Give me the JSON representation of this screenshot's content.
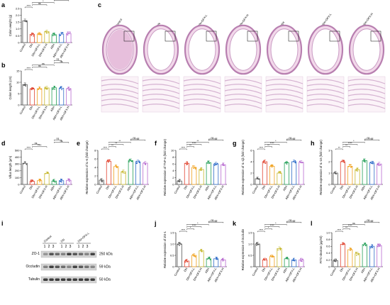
{
  "panel_letters": {
    "a": "a",
    "b": "b",
    "c": "c",
    "d": "d",
    "e": "e",
    "f": "f",
    "g": "g",
    "h": "h",
    "i": "i",
    "j": "j",
    "k": "k",
    "l": "l"
  },
  "groups": [
    "Control",
    "DN",
    "DN+OFX-L",
    "DN+OFX-H",
    "ABX",
    "ABX+OFX-L",
    "ABX+OFX-H"
  ],
  "colors": {
    "Control": "#555555",
    "DN": "#e0432f",
    "DN+OFX-L": "#f0a21f",
    "DN+OFX-H": "#c6b82f",
    "ABX": "#27a05a",
    "ABX+OFX-L": "#2f6cc9",
    "ABX+OFX-H": "#b86bd0"
  },
  "histology": {
    "labels": [
      "Control",
      "DN",
      "DN+OFX-L",
      "DN+OFX-H",
      "ABX",
      "ABX+OFX-L",
      "ABX+OFX-H"
    ]
  },
  "western_blot": {
    "top_groups": [
      "Control",
      "DN",
      "DN+OFX-L"
    ],
    "lanes": [
      "1",
      "2",
      "3"
    ],
    "proteins": [
      "ZO-1",
      "Occludin",
      "Tubulin"
    ],
    "sizes": [
      "250 kDa",
      "59 kDa",
      "50 kDa"
    ]
  },
  "chart_data": [
    {
      "id": "a",
      "type": "bar",
      "ylabel": "Colon weight (g)",
      "ylim": [
        0,
        2.5
      ],
      "yticks": [
        "0",
        "0.5",
        "1.0",
        "1.5",
        "2.0",
        "2.5"
      ],
      "categories": [
        "Control",
        "DN",
        "DN+OFX-L",
        "DN+OFX-H",
        "ABX",
        "ABX+OFX-L",
        "ABX+OFX-H"
      ],
      "values": [
        1.6,
        0.6,
        0.62,
        0.8,
        0.58,
        0.62,
        0.66
      ],
      "sig": [
        {
          "a": 0,
          "b": 1,
          "t": "****"
        },
        {
          "a": 1,
          "b": 3,
          "t": "ns"
        },
        {
          "a": 1,
          "b": 4,
          "t": "*"
        },
        {
          "a": 4,
          "b": 6,
          "t": "ns"
        },
        {
          "a": 4,
          "b": 5,
          "t": "ns"
        }
      ]
    },
    {
      "id": "b",
      "type": "bar",
      "ylabel": "Colon length (cm)",
      "ylim": [
        0,
        15
      ],
      "yticks": [
        "0",
        "5",
        "10",
        "15"
      ],
      "categories": [
        "Control",
        "DN",
        "DN+OFX-L",
        "DN+OFX-H",
        "ABX",
        "ABX+OFX-L",
        "ABX+OFX-H"
      ],
      "values": [
        9,
        7,
        7.2,
        7.5,
        7.6,
        7.4,
        7.2
      ],
      "sig": [
        {
          "a": 0,
          "b": 1,
          "t": "****"
        },
        {
          "a": 1,
          "b": 3,
          "t": "ns"
        },
        {
          "a": 1,
          "b": 4,
          "t": "ns"
        },
        {
          "a": 4,
          "b": 6,
          "t": "ns"
        },
        {
          "a": 4,
          "b": 5,
          "t": "ns"
        }
      ]
    },
    {
      "id": "d",
      "type": "bar",
      "ylabel": "Villus length (μm)",
      "ylim": [
        0,
        500
      ],
      "yticks": [
        "0",
        "100",
        "200",
        "300",
        "400",
        "500"
      ],
      "categories": [
        "Control",
        "DN",
        "DN+OFX-L",
        "DN+OFX-H",
        "ABX",
        "ABX+OFX-L",
        "ABX+OFX-H"
      ],
      "values": [
        310,
        45,
        55,
        160,
        50,
        55,
        60
      ],
      "sig": [
        {
          "a": 0,
          "b": 1,
          "t": "****"
        },
        {
          "a": 1,
          "b": 3,
          "t": "****"
        },
        {
          "a": 1,
          "b": 2,
          "t": "ns"
        },
        {
          "a": 4,
          "b": 6,
          "t": "ns"
        },
        {
          "a": 4,
          "b": 5,
          "t": "ns"
        }
      ]
    },
    {
      "id": "e",
      "type": "bar",
      "ylabel": "Relative expression of IL-6 (fold change)",
      "ylim": [
        0,
        8
      ],
      "yticks": [
        "0",
        "2",
        "4",
        "6",
        "8"
      ],
      "categories": [
        "Control",
        "DN",
        "DN+OFX-L",
        "DN+OFX-H",
        "ABX",
        "ABX+OFX-L",
        "ABX+OFX-H"
      ],
      "values": [
        1,
        5.4,
        4.2,
        3.0,
        5.6,
        5.3,
        5.0
      ],
      "sig": [
        {
          "a": 0,
          "b": 1,
          "t": "****"
        },
        {
          "a": 1,
          "b": 2,
          "t": "**"
        },
        {
          "a": 1,
          "b": 3,
          "t": "**"
        },
        {
          "a": 1,
          "b": 4,
          "t": "**"
        },
        {
          "a": 4,
          "b": 6,
          "t": "ns"
        },
        {
          "a": 4,
          "b": 5,
          "t": "ns"
        }
      ]
    },
    {
      "id": "f",
      "type": "bar",
      "ylabel": "Relative expression of TNF-α (fold change)",
      "ylim": [
        0,
        10
      ],
      "yticks": [
        "0",
        "2",
        "4",
        "6",
        "8",
        "10"
      ],
      "categories": [
        "Control",
        "DN",
        "DN+OFX-L",
        "DN+OFX-H",
        "ABX",
        "ABX+OFX-L",
        "ABX+OFX-H"
      ],
      "values": [
        1,
        6.2,
        5.0,
        4.4,
        6.4,
        6.0,
        5.8
      ],
      "sig": [
        {
          "a": 0,
          "b": 1,
          "t": "****"
        },
        {
          "a": 1,
          "b": 2,
          "t": "**"
        },
        {
          "a": 1,
          "b": 3,
          "t": "****"
        },
        {
          "a": 1,
          "b": 4,
          "t": "**"
        },
        {
          "a": 4,
          "b": 6,
          "t": "ns"
        },
        {
          "a": 4,
          "b": 5,
          "t": "ns"
        }
      ]
    },
    {
      "id": "g",
      "type": "bar",
      "ylabel": "Relative expression of IL-1β (fold change)",
      "ylim": [
        0,
        6
      ],
      "yticks": [
        "0",
        "2",
        "4",
        "6"
      ],
      "categories": [
        "Control",
        "DN",
        "DN+OFX-L",
        "DN+OFX-H",
        "ABX",
        "ABX+OFX-L",
        "ABX+OFX-H"
      ],
      "values": [
        1,
        4.0,
        3.2,
        2.0,
        3.8,
        4.0,
        3.9
      ],
      "sig": [
        {
          "a": 0,
          "b": 1,
          "t": "****"
        },
        {
          "a": 1,
          "b": 2,
          "t": "**"
        },
        {
          "a": 1,
          "b": 3,
          "t": "****"
        },
        {
          "a": 1,
          "b": 4,
          "t": "*"
        },
        {
          "a": 4,
          "b": 6,
          "t": "ns"
        },
        {
          "a": 4,
          "b": 5,
          "t": "ns"
        }
      ]
    },
    {
      "id": "h",
      "type": "bar",
      "ylabel": "Relative expression of IL-10 (fold change)",
      "ylim": [
        0,
        3
      ],
      "yticks": [
        "0",
        "1",
        "2",
        "3"
      ],
      "categories": [
        "Control",
        "DN",
        "DN+OFX-L",
        "DN+OFX-H",
        "ABX",
        "ABX+OFX-L",
        "ABX+OFX-H"
      ],
      "values": [
        1,
        2.0,
        1.6,
        1.3,
        2.1,
        1.9,
        1.8
      ],
      "sig": [
        {
          "a": 0,
          "b": 1,
          "t": "**"
        },
        {
          "a": 1,
          "b": 2,
          "t": "**"
        },
        {
          "a": 1,
          "b": 3,
          "t": "****"
        },
        {
          "a": 1,
          "b": 4,
          "t": "*"
        },
        {
          "a": 4,
          "b": 6,
          "t": "ns"
        },
        {
          "a": 4,
          "b": 5,
          "t": "ns"
        }
      ]
    },
    {
      "id": "j",
      "type": "bar",
      "ylabel": "Relative expression of ZO-1",
      "ylim": [
        0,
        1.5
      ],
      "yticks": [
        "0",
        "0.5",
        "1.0",
        "1.5"
      ],
      "categories": [
        "Control",
        "DN",
        "DN+OFX-L",
        "DN+OFX-H",
        "ABX",
        "ABX+OFX-L",
        "ABX+OFX-H"
      ],
      "values": [
        1.0,
        0.25,
        0.5,
        0.7,
        0.35,
        0.35,
        0.3
      ],
      "sig": [
        {
          "a": 0,
          "b": 1,
          "t": "****"
        },
        {
          "a": 1,
          "b": 2,
          "t": "*"
        },
        {
          "a": 1,
          "b": 3,
          "t": "****"
        },
        {
          "a": 1,
          "b": 4,
          "t": "*"
        },
        {
          "a": 4,
          "b": 6,
          "t": "ns"
        },
        {
          "a": 4,
          "b": 5,
          "t": "ns"
        }
      ]
    },
    {
      "id": "k",
      "type": "bar",
      "ylabel": "Relative expression of Occludin",
      "ylim": [
        0,
        1.5
      ],
      "yticks": [
        "0",
        "0.5",
        "1.0",
        "1.5"
      ],
      "categories": [
        "Control",
        "DN",
        "DN+OFX-L",
        "DN+OFX-H",
        "ABX",
        "ABX+OFX-L",
        "ABX+OFX-H"
      ],
      "values": [
        1.0,
        0.3,
        0.45,
        0.8,
        0.35,
        0.3,
        0.3
      ],
      "sig": [
        {
          "a": 0,
          "b": 1,
          "t": "****"
        },
        {
          "a": 1,
          "b": 2,
          "t": "*"
        },
        {
          "a": 1,
          "b": 3,
          "t": "****"
        },
        {
          "a": 1,
          "b": 4,
          "t": "*"
        },
        {
          "a": 4,
          "b": 6,
          "t": "ns"
        },
        {
          "a": 4,
          "b": 5,
          "t": "ns"
        }
      ]
    },
    {
      "id": "l",
      "type": "bar",
      "ylabel": "FITC-dextran (μg/ml)",
      "ylim": [
        0,
        1.0
      ],
      "yticks": [
        "0",
        "0.2",
        "0.4",
        "0.6",
        "0.8",
        "1.0"
      ],
      "categories": [
        "Control",
        "DN",
        "DN+OFX-L",
        "DN+OFX-H",
        "ABX",
        "ABX+OFX-L",
        "ABX+OFX-H"
      ],
      "values": [
        0.18,
        0.66,
        0.5,
        0.38,
        0.65,
        0.6,
        0.62
      ],
      "sig": [
        {
          "a": 0,
          "b": 1,
          "t": "****"
        },
        {
          "a": 1,
          "b": 2,
          "t": "**"
        },
        {
          "a": 1,
          "b": 3,
          "t": "****"
        },
        {
          "a": 1,
          "b": 4,
          "t": "ns"
        },
        {
          "a": 4,
          "b": 6,
          "t": "ns"
        },
        {
          "a": 4,
          "b": 5,
          "t": "ns"
        }
      ]
    }
  ]
}
